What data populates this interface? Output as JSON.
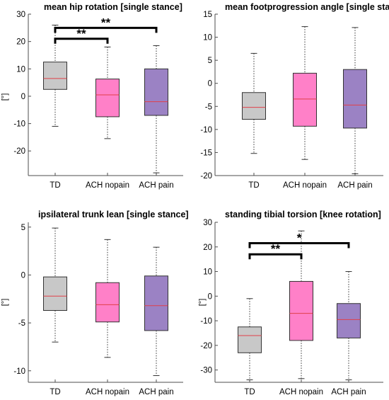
{
  "colors": {
    "TD": "#c8c8c8",
    "ACH nopain": "#ff80c8",
    "ACH pain": "#9b82c4",
    "median": "#e0404a",
    "axis": "#4d4d4d",
    "bracket": "#000000"
  },
  "chart_data": [
    {
      "type": "box",
      "title": "mean hip rotation [single stance]",
      "ylabel": "[°]",
      "categories": [
        "TD",
        "ACH nopain",
        "ACH pain"
      ],
      "ylim": [
        -29,
        30
      ],
      "yticks": [
        30,
        20,
        10,
        0,
        -10,
        -20
      ],
      "ytick_labels": [
        "30",
        "20",
        "10",
        "0",
        "-10",
        "-20"
      ],
      "boxes": [
        {
          "category": "TD",
          "whisker_low": -11,
          "q1": 2.5,
          "median": 6.5,
          "q3": 12.5,
          "whisker_high": 26
        },
        {
          "category": "ACH nopain",
          "whisker_low": -15.5,
          "q1": -7.5,
          "median": 0.5,
          "q3": 6.3,
          "whisker_high": 18
        },
        {
          "category": "ACH pain",
          "whisker_low": -28,
          "q1": -7,
          "median": -2,
          "q3": 10,
          "whisker_high": 18.5
        }
      ],
      "significance": [
        {
          "from": "TD",
          "to": "ACH nopain",
          "label": "**",
          "y": 21
        },
        {
          "from": "TD",
          "to": "ACH pain",
          "label": "**",
          "y": 25
        }
      ]
    },
    {
      "type": "box",
      "title": "mean footprogression angle [single stance]",
      "ylabel": "",
      "categories": [
        "TD",
        "ACH nopain",
        "ACH pain"
      ],
      "ylim": [
        -20,
        15
      ],
      "yticks": [
        15,
        10,
        5,
        0,
        -5,
        -10,
        -15,
        -20
      ],
      "ytick_labels": [
        "15",
        "10",
        "5",
        "0",
        "-5",
        "-10",
        "-15",
        "-20"
      ],
      "boxes": [
        {
          "category": "TD",
          "whisker_low": -15.2,
          "q1": -7.8,
          "median": -5.2,
          "q3": -2,
          "whisker_high": 6.5
        },
        {
          "category": "ACH nopain",
          "whisker_low": -16.5,
          "q1": -9.3,
          "median": -3.4,
          "q3": 2.2,
          "whisker_high": 12.3
        },
        {
          "category": "ACH pain",
          "whisker_low": -19.6,
          "q1": -9.7,
          "median": -4.7,
          "q3": 3,
          "whisker_high": 12.1
        }
      ],
      "significance": []
    },
    {
      "type": "box",
      "title": "ipsilateral trunk lean  [single stance]",
      "ylabel": "[°]",
      "categories": [
        "TD",
        "ACH nopain",
        "ACH pain"
      ],
      "ylim": [
        -11.2,
        5.5
      ],
      "yticks": [
        5,
        0,
        -5,
        -10
      ],
      "ytick_labels": [
        "5",
        "0",
        "-5",
        "-10"
      ],
      "boxes": [
        {
          "category": "TD",
          "whisker_low": -7,
          "q1": -3.7,
          "median": -2.2,
          "q3": -0.2,
          "whisker_high": 4.9
        },
        {
          "category": "ACH nopain",
          "whisker_low": -8.6,
          "q1": -4.9,
          "median": -3.1,
          "q3": -0.8,
          "whisker_high": 3.7
        },
        {
          "category": "ACH pain",
          "whisker_low": -10.5,
          "q1": -5.8,
          "median": -3.2,
          "q3": -0.1,
          "whisker_high": 2.9
        }
      ],
      "significance": []
    },
    {
      "type": "box",
      "title": "standing tibial torsion [knee rotation]",
      "ylabel": "[°]",
      "categories": [
        "TD",
        "ACH nopain",
        "ACH pain"
      ],
      "ylim": [
        -35,
        30
      ],
      "yticks": [
        30,
        20,
        10,
        0,
        -10,
        -20,
        -30
      ],
      "ytick_labels": [
        "30",
        "20",
        "10",
        "0",
        "-10",
        "-20",
        "-30"
      ],
      "boxes": [
        {
          "category": "TD",
          "whisker_low": -34,
          "q1": -23,
          "median": -16,
          "q3": -12.5,
          "whisker_high": -1
        },
        {
          "category": "ACH nopain",
          "whisker_low": -33.5,
          "q1": -18,
          "median": -7,
          "q3": 6,
          "whisker_high": 26.5
        },
        {
          "category": "ACH pain",
          "whisker_low": -34,
          "q1": -17,
          "median": -9.5,
          "q3": -3,
          "whisker_high": 10
        }
      ],
      "significance": [
        {
          "from": "TD",
          "to": "ACH nopain",
          "label": "**",
          "y": 17
        },
        {
          "from": "TD",
          "to": "ACH pain",
          "label": "*",
          "y": 21.5
        }
      ]
    }
  ]
}
